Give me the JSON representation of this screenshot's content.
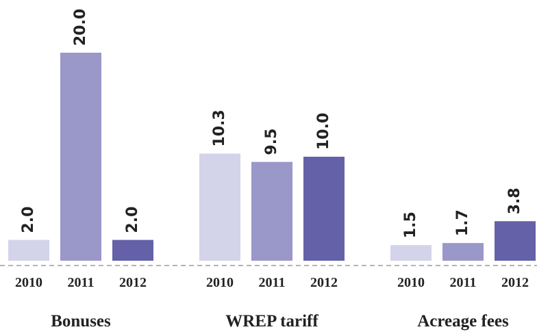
{
  "chart_data": {
    "type": "bar",
    "categories": [
      "Bonuses",
      "WREP tariff",
      "Acreage fees"
    ],
    "series": [
      {
        "name": "2010",
        "color": "#d3d3ea",
        "values": [
          2.0,
          10.3,
          1.5
        ],
        "value_labels": [
          "2.0",
          "10.3",
          "1.5"
        ]
      },
      {
        "name": "2011",
        "color": "#9a97c9",
        "values": [
          20.0,
          9.5,
          1.7
        ],
        "value_labels": [
          "20.0",
          "9.5",
          "1.7"
        ]
      },
      {
        "name": "2012",
        "color": "#6461a9",
        "values": [
          2.0,
          10.0,
          3.8
        ],
        "value_labels": [
          "2.0",
          "10.0",
          "3.8"
        ]
      }
    ]
  }
}
